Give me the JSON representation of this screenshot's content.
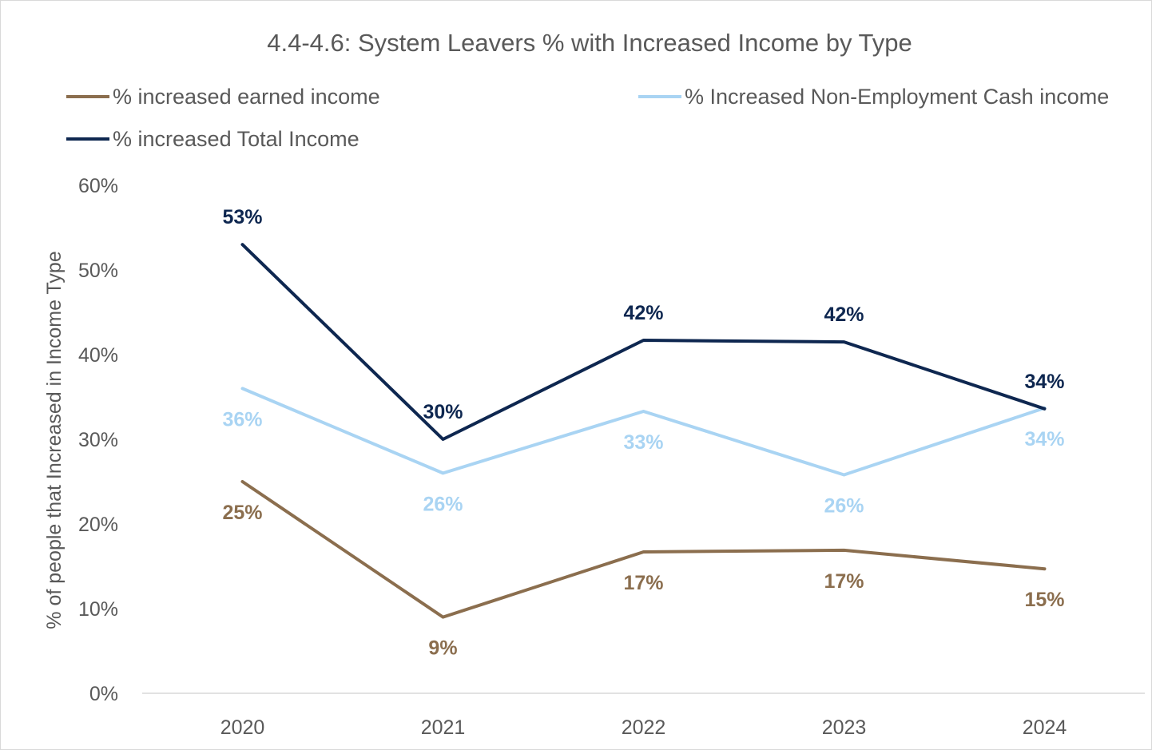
{
  "chart_data": {
    "type": "line",
    "title": "4.4-4.6: System Leavers % with Increased Income by Type",
    "xlabel": "",
    "ylabel": "% of people that Increased in Income Type",
    "categories": [
      "2020",
      "2021",
      "2022",
      "2023",
      "2024"
    ],
    "ylim": [
      0,
      60
    ],
    "y_ticks": [
      "0%",
      "10%",
      "20%",
      "30%",
      "40%",
      "50%",
      "60%"
    ],
    "y_tick_values": [
      0,
      10,
      20,
      30,
      40,
      50,
      60
    ],
    "grid": false,
    "legend_position": "top",
    "series": [
      {
        "name": "% increased earned income",
        "color": "#8b6e4e",
        "values": [
          25,
          9,
          16.7,
          16.9,
          14.7
        ],
        "labels": [
          "25%",
          "9%",
          "17%",
          "17%",
          "15%"
        ],
        "label_position": "below"
      },
      {
        "name": "% Increased Non-Employment Cash income",
        "color": "#a9d4f3",
        "values": [
          36,
          26,
          33.3,
          25.8,
          33.7
        ],
        "labels": [
          "36%",
          "26%",
          "33%",
          "26%",
          "34%"
        ],
        "label_position": "below"
      },
      {
        "name": "% increased Total Income",
        "color": "#0e2750",
        "values": [
          53,
          30,
          41.7,
          41.5,
          33.6
        ],
        "labels": [
          "53%",
          "30%",
          "42%",
          "42%",
          "34%"
        ],
        "label_position": "above"
      }
    ]
  }
}
